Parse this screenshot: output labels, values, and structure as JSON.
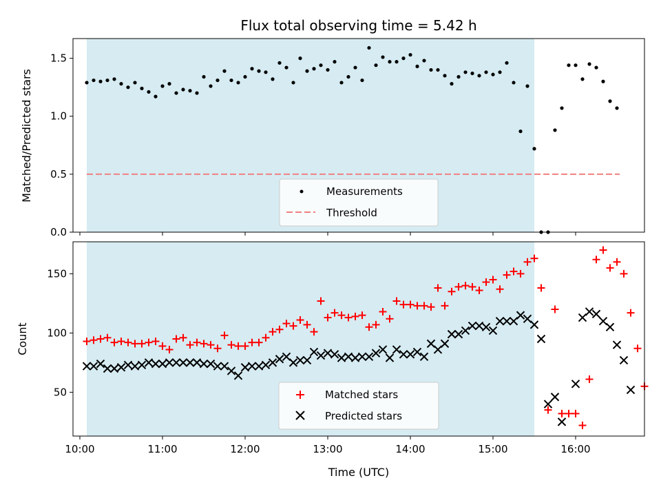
{
  "title": "Flux total observing time = 5.42 h",
  "xlabel": "Time (UTC)",
  "colors": {
    "shade": "#add8e6",
    "measurements": "#000000",
    "threshold": "#f08080",
    "matched": "#ff0000",
    "predicted": "#000000"
  },
  "chart_data": [
    {
      "type": "scatter",
      "panel": "top",
      "ylabel": "Matched/Predicted stars",
      "xlim": [
        "09:55",
        "16:50"
      ],
      "ylim": [
        0,
        1.67
      ],
      "xticks": [
        "10:00",
        "11:00",
        "12:00",
        "13:00",
        "14:00",
        "15:00",
        "16:00"
      ],
      "yticks": [
        "0.0",
        "0.5",
        "1.0",
        "1.5"
      ],
      "observing_window": [
        "10:05",
        "15:30"
      ],
      "legend_position": "lower center",
      "threshold": {
        "name": "Threshold",
        "value": 0.5,
        "x_range": [
          "10:05",
          "16:32"
        ]
      },
      "series": [
        {
          "name": "Measurements",
          "marker": "dot",
          "points": [
            [
              "10:05",
              1.29
            ],
            [
              "10:10",
              1.31
            ],
            [
              "10:15",
              1.3
            ],
            [
              "10:20",
              1.31
            ],
            [
              "10:25",
              1.32
            ],
            [
              "10:30",
              1.28
            ],
            [
              "10:35",
              1.25
            ],
            [
              "10:40",
              1.29
            ],
            [
              "10:45",
              1.24
            ],
            [
              "10:50",
              1.21
            ],
            [
              "10:55",
              1.17
            ],
            [
              "11:00",
              1.26
            ],
            [
              "11:05",
              1.28
            ],
            [
              "11:10",
              1.2
            ],
            [
              "11:15",
              1.23
            ],
            [
              "11:20",
              1.22
            ],
            [
              "11:25",
              1.2
            ],
            [
              "11:30",
              1.34
            ],
            [
              "11:35",
              1.26
            ],
            [
              "11:40",
              1.31
            ],
            [
              "11:45",
              1.39
            ],
            [
              "11:50",
              1.31
            ],
            [
              "11:55",
              1.29
            ],
            [
              "12:00",
              1.34
            ],
            [
              "12:05",
              1.41
            ],
            [
              "12:10",
              1.39
            ],
            [
              "12:15",
              1.38
            ],
            [
              "12:20",
              1.32
            ],
            [
              "12:25",
              1.46
            ],
            [
              "12:30",
              1.42
            ],
            [
              "12:35",
              1.29
            ],
            [
              "12:40",
              1.5
            ],
            [
              "12:45",
              1.39
            ],
            [
              "12:50",
              1.41
            ],
            [
              "12:55",
              1.44
            ],
            [
              "13:00",
              1.4
            ],
            [
              "13:05",
              1.47
            ],
            [
              "13:10",
              1.29
            ],
            [
              "13:15",
              1.34
            ],
            [
              "13:20",
              1.42
            ],
            [
              "13:25",
              1.31
            ],
            [
              "13:30",
              1.59
            ],
            [
              "13:35",
              1.44
            ],
            [
              "13:40",
              1.51
            ],
            [
              "13:45",
              1.47
            ],
            [
              "13:50",
              1.47
            ],
            [
              "13:55",
              1.5
            ],
            [
              "14:00",
              1.53
            ],
            [
              "14:05",
              1.43
            ],
            [
              "14:10",
              1.48
            ],
            [
              "14:15",
              1.4
            ],
            [
              "14:20",
              1.4
            ],
            [
              "14:25",
              1.35
            ],
            [
              "14:30",
              1.28
            ],
            [
              "14:35",
              1.34
            ],
            [
              "14:40",
              1.38
            ],
            [
              "14:45",
              1.37
            ],
            [
              "14:50",
              1.35
            ],
            [
              "14:55",
              1.38
            ],
            [
              "15:00",
              1.36
            ],
            [
              "15:05",
              1.38
            ],
            [
              "15:10",
              1.46
            ],
            [
              "15:15",
              1.29
            ],
            [
              "15:20",
              0.87
            ],
            [
              "15:25",
              1.26
            ],
            [
              "15:30",
              0.72
            ],
            [
              "15:35",
              0.0
            ],
            [
              "15:40",
              0.0
            ],
            [
              "15:45",
              0.88
            ],
            [
              "15:50",
              1.07
            ],
            [
              "15:55",
              1.44
            ],
            [
              "16:00",
              1.44
            ],
            [
              "16:05",
              1.32
            ],
            [
              "16:10",
              1.45
            ],
            [
              "16:15",
              1.42
            ],
            [
              "16:20",
              1.3
            ],
            [
              "16:25",
              1.13
            ],
            [
              "16:30",
              1.07
            ]
          ]
        }
      ]
    },
    {
      "type": "scatter",
      "panel": "bottom",
      "ylabel": "Count",
      "xlim": [
        "09:55",
        "16:50"
      ],
      "ylim": [
        13,
        177
      ],
      "xticks": [
        "10:00",
        "11:00",
        "12:00",
        "13:00",
        "14:00",
        "15:00",
        "16:00"
      ],
      "yticks": [
        "50",
        "100",
        "150"
      ],
      "observing_window": [
        "10:05",
        "15:30"
      ],
      "legend_position": "lower center",
      "series": [
        {
          "name": "Matched stars",
          "marker": "plus",
          "points": [
            [
              "10:05",
              93
            ],
            [
              "10:10",
              94
            ],
            [
              "10:15",
              95
            ],
            [
              "10:20",
              96
            ],
            [
              "10:25",
              92
            ],
            [
              "10:30",
              93
            ],
            [
              "10:35",
              92
            ],
            [
              "10:40",
              91
            ],
            [
              "10:45",
              91
            ],
            [
              "10:50",
              92
            ],
            [
              "10:55",
              93
            ],
            [
              "11:00",
              89
            ],
            [
              "11:05",
              86
            ],
            [
              "11:10",
              95
            ],
            [
              "11:15",
              96
            ],
            [
              "11:20",
              90
            ],
            [
              "11:25",
              92
            ],
            [
              "11:30",
              91
            ],
            [
              "11:35",
              90
            ],
            [
              "11:40",
              87
            ],
            [
              "11:45",
              98
            ],
            [
              "11:50",
              90
            ],
            [
              "11:55",
              89
            ],
            [
              "12:00",
              89
            ],
            [
              "12:05",
              92
            ],
            [
              "12:10",
              92
            ],
            [
              "12:15",
              96
            ],
            [
              "12:20",
              101
            ],
            [
              "12:25",
              103
            ],
            [
              "12:30",
              108
            ],
            [
              "12:35",
              106
            ],
            [
              "12:40",
              111
            ],
            [
              "12:45",
              107
            ],
            [
              "12:50",
              101
            ],
            [
              "12:55",
              127
            ],
            [
              "13:00",
              113
            ],
            [
              "13:05",
              117
            ],
            [
              "13:10",
              115
            ],
            [
              "13:15",
              113
            ],
            [
              "13:20",
              114
            ],
            [
              "13:25",
              115
            ],
            [
              "13:30",
              105
            ],
            [
              "13:35",
              107
            ],
            [
              "13:40",
              118
            ],
            [
              "13:45",
              112
            ],
            [
              "13:50",
              127
            ],
            [
              "13:55",
              124
            ],
            [
              "14:00",
              124
            ],
            [
              "14:05",
              123
            ],
            [
              "14:10",
              123
            ],
            [
              "14:15",
              122
            ],
            [
              "14:20",
              138
            ],
            [
              "14:25",
              123
            ],
            [
              "14:30",
              135
            ],
            [
              "14:35",
              139
            ],
            [
              "14:40",
              140
            ],
            [
              "14:45",
              139
            ],
            [
              "14:50",
              136
            ],
            [
              "14:55",
              143
            ],
            [
              "15:00",
              145
            ],
            [
              "15:05",
              137
            ],
            [
              "15:10",
              149
            ],
            [
              "15:15",
              152
            ],
            [
              "15:20",
              150
            ],
            [
              "15:25",
              160
            ],
            [
              "15:30",
              163
            ],
            [
              "15:35",
              138
            ],
            [
              "15:40",
              35
            ],
            [
              "15:45",
              120
            ],
            [
              "15:50",
              32
            ],
            [
              "15:55",
              32
            ],
            [
              "16:00",
              32
            ],
            [
              "16:05",
              22
            ],
            [
              "16:10",
              61
            ],
            [
              "16:15",
              162
            ],
            [
              "16:20",
              170
            ],
            [
              "16:25",
              155
            ],
            [
              "16:30",
              160
            ],
            [
              "16:35",
              150
            ],
            [
              "16:40",
              117
            ],
            [
              "16:45",
              87
            ],
            [
              "16:50",
              55
            ]
          ]
        },
        {
          "name": "Predicted stars",
          "marker": "x",
          "points": [
            [
              "10:05",
              72
            ],
            [
              "10:10",
              72
            ],
            [
              "10:15",
              74
            ],
            [
              "10:20",
              70
            ],
            [
              "10:25",
              70
            ],
            [
              "10:30",
              71
            ],
            [
              "10:35",
              73
            ],
            [
              "10:40",
              72
            ],
            [
              "10:45",
              73
            ],
            [
              "10:50",
              75
            ],
            [
              "10:55",
              74
            ],
            [
              "11:00",
              74
            ],
            [
              "11:05",
              75
            ],
            [
              "11:10",
              75
            ],
            [
              "11:15",
              75
            ],
            [
              "11:20",
              75
            ],
            [
              "11:25",
              75
            ],
            [
              "11:30",
              74
            ],
            [
              "11:35",
              74
            ],
            [
              "11:40",
              72
            ],
            [
              "11:45",
              72
            ],
            [
              "11:50",
              68
            ],
            [
              "11:55",
              64
            ],
            [
              "12:00",
              71
            ],
            [
              "12:05",
              72
            ],
            [
              "12:10",
              72
            ],
            [
              "12:15",
              73
            ],
            [
              "12:20",
              75
            ],
            [
              "12:25",
              78
            ],
            [
              "12:30",
              80
            ],
            [
              "12:35",
              75
            ],
            [
              "12:40",
              77
            ],
            [
              "12:45",
              77
            ],
            [
              "12:50",
              84
            ],
            [
              "12:55",
              81
            ],
            [
              "13:00",
              83
            ],
            [
              "13:05",
              82
            ],
            [
              "13:10",
              79
            ],
            [
              "13:15",
              80
            ],
            [
              "13:20",
              79
            ],
            [
              "13:25",
              80
            ],
            [
              "13:30",
              80
            ],
            [
              "13:35",
              83
            ],
            [
              "13:40",
              86
            ],
            [
              "13:45",
              79
            ],
            [
              "13:50",
              86
            ],
            [
              "13:55",
              82
            ],
            [
              "14:00",
              82
            ],
            [
              "14:05",
              84
            ],
            [
              "14:10",
              80
            ],
            [
              "14:15",
              91
            ],
            [
              "14:20",
              86
            ],
            [
              "14:25",
              91
            ],
            [
              "14:30",
              99
            ],
            [
              "14:35",
              99
            ],
            [
              "14:40",
              102
            ],
            [
              "14:45",
              106
            ],
            [
              "14:50",
              106
            ],
            [
              "14:55",
              105
            ],
            [
              "15:00",
              102
            ],
            [
              "15:05",
              110
            ],
            [
              "15:10",
              110
            ],
            [
              "15:15",
              110
            ],
            [
              "15:20",
              115
            ],
            [
              "15:25",
              112
            ],
            [
              "15:30",
              107
            ],
            [
              "15:35",
              95
            ],
            [
              "15:40",
              40
            ],
            [
              "15:45",
              46
            ],
            [
              "15:50",
              25
            ],
            [
              "16:00",
              57
            ],
            [
              "16:05",
              113
            ],
            [
              "16:10",
              118
            ],
            [
              "16:15",
              116
            ],
            [
              "16:20",
              110
            ],
            [
              "16:25",
              105
            ],
            [
              "16:30",
              90
            ],
            [
              "16:35",
              77
            ],
            [
              "16:40",
              52
            ]
          ]
        }
      ]
    }
  ]
}
